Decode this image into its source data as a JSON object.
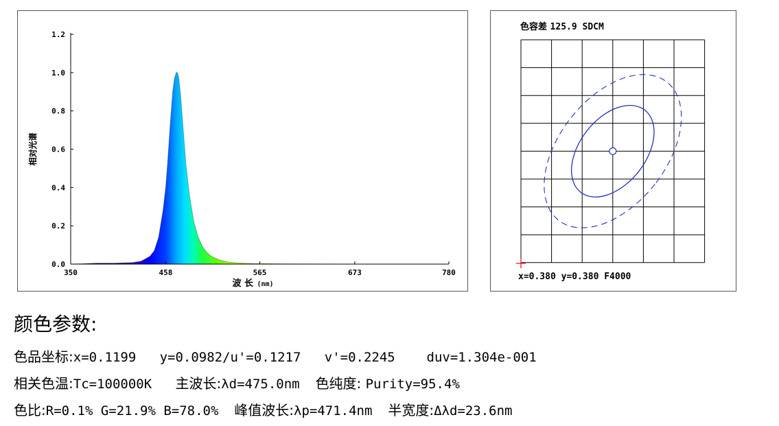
{
  "spectrum_panel": {
    "ylabel": "相对光谱",
    "xlabel": "波 长",
    "xlabel_unit": "(nm)"
  },
  "chart_data": {
    "type": "area",
    "ylabel": "相对光谱",
    "xlabel": "波 长(nm)",
    "xlim": [
      350,
      780
    ],
    "ylim": [
      0,
      1.2
    ],
    "xticks": [
      350,
      458,
      565,
      673,
      780
    ],
    "yticks": [
      "0.0",
      "0.2",
      "0.4",
      "0.6",
      "0.8",
      "1.0",
      "1.2"
    ],
    "grid": false,
    "series": [
      {
        "x": [
          350,
          380,
          400,
          420,
          430,
          440,
          445,
          450,
          455,
          458,
          460,
          463,
          466,
          468,
          470,
          471.4,
          473,
          475,
          478,
          481,
          485,
          490,
          495,
          500,
          505,
          510,
          520,
          530,
          540,
          560,
          600,
          650,
          700,
          780
        ],
        "y": [
          0.0,
          0.005,
          0.005,
          0.008,
          0.015,
          0.04,
          0.07,
          0.14,
          0.28,
          0.4,
          0.52,
          0.72,
          0.9,
          0.97,
          1.0,
          1.0,
          0.97,
          0.88,
          0.7,
          0.52,
          0.36,
          0.22,
          0.14,
          0.09,
          0.06,
          0.04,
          0.02,
          0.01,
          0.006,
          0.003,
          0.001,
          0.0,
          0.0,
          0.0
        ]
      }
    ]
  },
  "ellipse_panel": {
    "title_prefix": "色容差",
    "title_value": "125.9 SDCM",
    "footer": "x=0.380 y=0.380 F4000"
  },
  "params": {
    "title": "颜色参数:",
    "row1_label": "色品坐标:",
    "row1_value": "x=0.1199   y=0.0982/u'=0.1217   v'=0.2245    duv=1.304e-001",
    "row2_label1": "相关色温:",
    "row2_value1": "Tc=100000K   ",
    "row2_label2": "主波长:",
    "row2_value2": "λd=475.0nm  ",
    "row2_label3": "色纯度: ",
    "row2_value3": "Purity=95.4%",
    "row3_label1": "色比:",
    "row3_value1": "R=0.1% G=21.9% B=78.0%  ",
    "row3_label2": "峰值波长:",
    "row3_value2": "λp=471.4nm  ",
    "row3_label3": "半宽度:",
    "row3_value3": "Δλd=23.6nm"
  }
}
